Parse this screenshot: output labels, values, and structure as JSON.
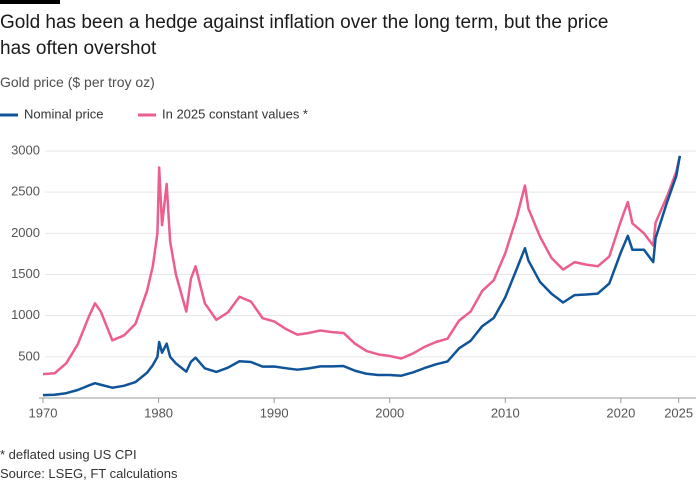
{
  "chart_data": {
    "type": "line",
    "title": "Gold has been a hedge against inflation over the long term, but the price has often overshot",
    "subtitle": "Gold price ($ per troy oz)",
    "note": "* deflated using US CPI",
    "source": "Source: LSEG, FT calculations",
    "x": [
      1970,
      1971,
      1972,
      1973,
      1974,
      1974.5,
      1975,
      1976,
      1977,
      1978,
      1979,
      1979.5,
      1979.9,
      1980.05,
      1980.3,
      1980.7,
      1981,
      1981.5,
      1982.4,
      1982.8,
      1983.2,
      1984,
      1985,
      1986,
      1987,
      1988,
      1989,
      1990,
      1991,
      1992,
      1993,
      1994,
      1995,
      1996,
      1997,
      1998,
      1999,
      2000,
      2001,
      2002,
      2003,
      2004,
      2005,
      2006,
      2007,
      2008,
      2009,
      2010,
      2011,
      2011.7,
      2012,
      2013,
      2014,
      2015,
      2016,
      2017,
      2018,
      2019,
      2020,
      2020.6,
      2021,
      2022,
      2022.8,
      2023,
      2024,
      2024.8,
      2025.1
    ],
    "series": [
      {
        "name": "Nominal price",
        "color": "#0f5499",
        "values": [
          35,
          40,
          58,
          97,
          154,
          180,
          161,
          125,
          148,
          193,
          307,
          400,
          500,
          680,
          550,
          660,
          500,
          420,
          320,
          440,
          490,
          360,
          317,
          368,
          446,
          437,
          381,
          383,
          362,
          344,
          360,
          384,
          384,
          388,
          331,
          294,
          279,
          279,
          271,
          310,
          363,
          409,
          444,
          604,
          695,
          872,
          972,
          1224,
          1571,
          1820,
          1669,
          1411,
          1266,
          1160,
          1250,
          1257,
          1268,
          1392,
          1770,
          1970,
          1800,
          1800,
          1650,
          1940,
          2380,
          2700,
          2940
        ]
      },
      {
        "name": "In 2025 constant values *",
        "color": "#eb5e8d",
        "values": [
          290,
          300,
          420,
          650,
          1000,
          1150,
          1050,
          700,
          760,
          900,
          1300,
          1600,
          2000,
          2800,
          2100,
          2600,
          1900,
          1500,
          1050,
          1450,
          1600,
          1150,
          950,
          1040,
          1230,
          1170,
          970,
          930,
          840,
          770,
          790,
          820,
          800,
          790,
          660,
          570,
          530,
          510,
          480,
          540,
          620,
          680,
          720,
          940,
          1050,
          1300,
          1430,
          1760,
          2200,
          2580,
          2300,
          1960,
          1700,
          1560,
          1650,
          1620,
          1600,
          1720,
          2150,
          2380,
          2120,
          2000,
          1850,
          2130,
          2450,
          2750,
          2940
        ]
      }
    ],
    "xlim": [
      1970,
      2026.5
    ],
    "xticks": [
      1970,
      1980,
      1990,
      2000,
      2010,
      2020,
      2025
    ],
    "ylim": [
      0,
      3000
    ],
    "yticks": [
      500,
      1000,
      1500,
      2000,
      2500,
      3000
    ],
    "grid": true
  }
}
